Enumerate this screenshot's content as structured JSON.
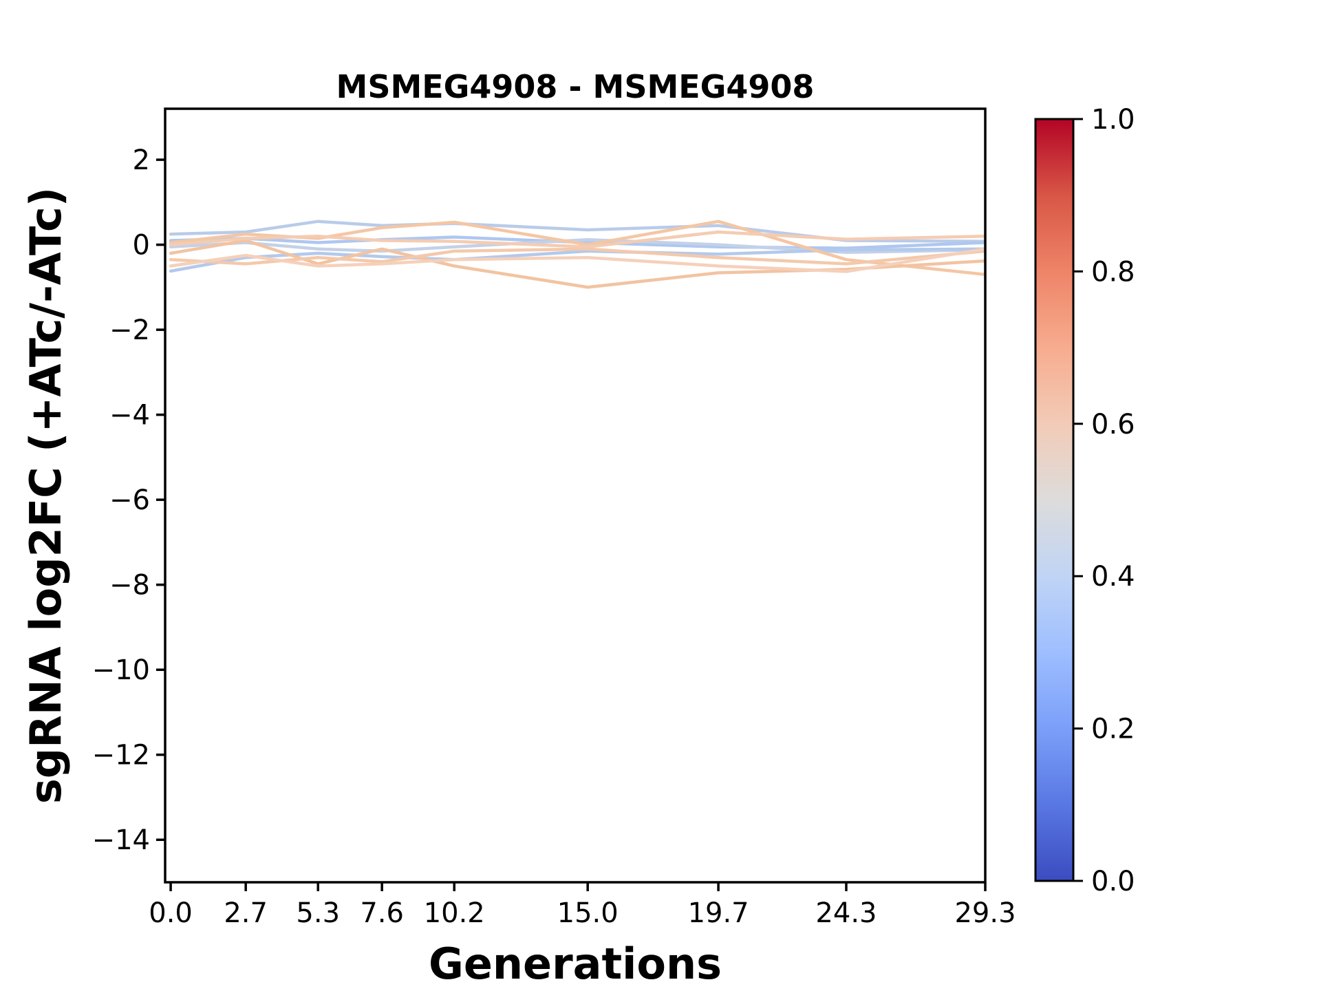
{
  "figure": {
    "background_color": "#ffffff"
  },
  "chart_data": {
    "type": "line",
    "title": "MSMEG4908 - MSMEG4908",
    "xlabel": "Generations",
    "ylabel": "sgRNA log2FC (+ATc/-ATc)",
    "grid": false,
    "legend": "none (colorbar only)",
    "xlim": [
      -0.2,
      29.3
    ],
    "ylim": [
      -15.0,
      3.2
    ],
    "x": [
      0.0,
      2.7,
      5.3,
      7.6,
      10.2,
      15.0,
      19.7,
      24.3,
      29.3
    ],
    "x_tick_labels": [
      "0.0",
      "2.7",
      "5.3",
      "7.6",
      "10.2",
      "15.0",
      "19.7",
      "24.3",
      "29.3"
    ],
    "y_ticks": [
      2,
      0,
      -2,
      -4,
      -6,
      -8,
      -10,
      -12,
      -14
    ],
    "y_tick_labels": [
      "2",
      "0",
      "−2",
      "−4",
      "−6",
      "−8",
      "−10",
      "−12",
      "−14"
    ],
    "series": [
      {
        "color": "#b9cbe9",
        "colormap_value": 0.43,
        "values": [
          0.25,
          0.3,
          0.55,
          0.45,
          0.5,
          0.35,
          0.45,
          0.1,
          0.08
        ]
      },
      {
        "color": "#aec7f0",
        "colormap_value": 0.4,
        "values": [
          0.1,
          0.15,
          0.05,
          0.12,
          0.18,
          0.05,
          -0.05,
          -0.08,
          0.05
        ]
      },
      {
        "color": "#c3d1e8",
        "colormap_value": 0.45,
        "values": [
          -0.05,
          0.05,
          -0.1,
          -0.15,
          -0.05,
          0.12,
          0.0,
          -0.18,
          -0.12
        ]
      },
      {
        "color": "#b3c9ec",
        "colormap_value": 0.41,
        "values": [
          -0.62,
          -0.3,
          -0.2,
          -0.28,
          -0.35,
          -0.15,
          -0.22,
          -0.12,
          -0.1
        ]
      },
      {
        "color": "#f4c6a4",
        "colormap_value": 0.62,
        "values": [
          0.05,
          0.25,
          0.15,
          0.4,
          0.53,
          0.0,
          0.55,
          -0.35,
          -0.7
        ]
      },
      {
        "color": "#f2c3a1",
        "colormap_value": 0.63,
        "values": [
          -0.2,
          0.1,
          -0.45,
          -0.1,
          -0.5,
          -1.0,
          -0.66,
          -0.58,
          -0.38
        ]
      },
      {
        "color": "#f4ccb2",
        "colormap_value": 0.6,
        "values": [
          0.0,
          0.15,
          0.2,
          0.1,
          0.08,
          -0.05,
          0.3,
          0.13,
          0.2
        ]
      },
      {
        "color": "#f3c9ab",
        "colormap_value": 0.61,
        "values": [
          -0.35,
          -0.45,
          -0.3,
          -0.4,
          -0.15,
          -0.1,
          -0.3,
          -0.45,
          -0.15
        ]
      },
      {
        "color": "#f5d0ba",
        "colormap_value": 0.58,
        "values": [
          -0.5,
          -0.25,
          -0.5,
          -0.45,
          -0.35,
          -0.3,
          -0.5,
          -0.63,
          -0.1
        ]
      }
    ],
    "colorbar": {
      "orientation": "vertical",
      "range": [
        0.0,
        1.0
      ],
      "tick_values": [
        0.0,
        0.2,
        0.4,
        0.6,
        0.8,
        1.0
      ],
      "tick_labels": [
        "0.0",
        "0.2",
        "0.4",
        "0.6",
        "0.8",
        "1.0"
      ],
      "colormap_name": "coolwarm",
      "stops": [
        {
          "value": 0.0,
          "color": "#3b4cc0"
        },
        {
          "value": 0.1,
          "color": "#5977e3"
        },
        {
          "value": 0.2,
          "color": "#7b9ff9"
        },
        {
          "value": 0.3,
          "color": "#9ebeff"
        },
        {
          "value": 0.4,
          "color": "#c0d4f5"
        },
        {
          "value": 0.5,
          "color": "#dddcdb"
        },
        {
          "value": 0.6,
          "color": "#f2cbb7"
        },
        {
          "value": 0.7,
          "color": "#f7ac8e"
        },
        {
          "value": 0.8,
          "color": "#ee8468"
        },
        {
          "value": 0.9,
          "color": "#d85646"
        },
        {
          "value": 1.0,
          "color": "#b40426"
        }
      ]
    }
  }
}
